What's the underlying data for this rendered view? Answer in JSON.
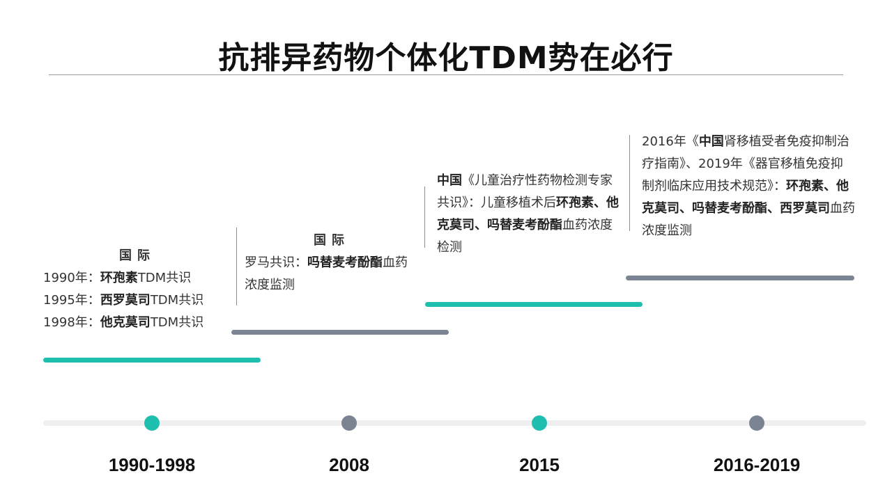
{
  "title": "抗排异药物个体化TDM势在必行",
  "colors": {
    "teal": "#1fbfb0",
    "grey": "#7a8492",
    "track": "#efefef"
  },
  "periods": [
    {
      "year": "1990-1998",
      "heading": "国际",
      "lines": [
        {
          "pre": "1990年：",
          "bold": "环孢素",
          "post": "TDM共识"
        },
        {
          "pre": "1995年：",
          "bold": "西罗莫司",
          "post": "TDM共识"
        },
        {
          "pre": "1998年：",
          "bold": "他克莫司",
          "post": "TDM共识"
        }
      ]
    },
    {
      "year": "2008",
      "heading": "国际",
      "text": {
        "pre": "罗马共识：",
        "bold": "吗替麦考酚酯",
        "post": "血药浓度监测"
      }
    },
    {
      "year": "2015",
      "text": {
        "b1": "中国",
        "t1": "《儿童治疗性药物检测专家共识》：儿童移植术后",
        "b2": "环孢素、他克莫司、吗替麦考酚酯",
        "t2": "血药浓度检测"
      }
    },
    {
      "year": "2016-2019",
      "text": {
        "t0": "2016年《",
        "b1": "中国",
        "t1": "肾移植受者免疫抑制治疗指南》、2019年《器官移植免疫抑制剂临床应用技术规范》：",
        "b2": "环孢素、他克莫司、吗替麦考酚酯、西罗莫司",
        "t2": "血药浓度监测"
      }
    }
  ]
}
